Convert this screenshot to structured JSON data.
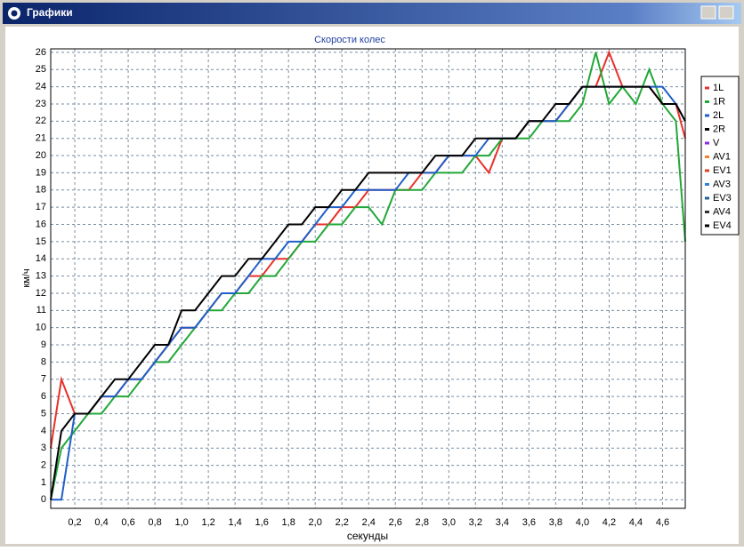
{
  "window_title": "Графики",
  "chart_data": {
    "type": "line",
    "title": "Скорости колес",
    "x_label": "секунды",
    "y_label": "км/ч",
    "x": [
      0.02,
      0.1,
      0.2,
      0.3,
      0.4,
      0.5,
      0.6,
      0.7,
      0.8,
      0.9,
      1.0,
      1.1,
      1.2,
      1.3,
      1.4,
      1.5,
      1.6,
      1.7,
      1.8,
      1.9,
      2.0,
      2.1,
      2.2,
      2.3,
      2.4,
      2.5,
      2.6,
      2.7,
      2.8,
      2.9,
      3.0,
      3.1,
      3.2,
      3.3,
      3.4,
      3.5,
      3.6,
      3.7,
      3.8,
      3.9,
      4.0,
      4.1,
      4.2,
      4.3,
      4.4,
      4.5,
      4.6,
      4.7,
      4.77
    ],
    "series": [
      {
        "name": "1L",
        "color": "#e8302a",
        "values": [
          3,
          7,
          5,
          5,
          6,
          6,
          7,
          7,
          8,
          9,
          10,
          10,
          11,
          12,
          12,
          13,
          13,
          14,
          14,
          15,
          16,
          16,
          17,
          17,
          18,
          18,
          18,
          18,
          19,
          19,
          20,
          20,
          20,
          19,
          21,
          21,
          22,
          22,
          22,
          23,
          24,
          24,
          26,
          24,
          24,
          24,
          23,
          23,
          21
        ]
      },
      {
        "name": "1R",
        "color": "#22a838",
        "values": [
          0,
          3,
          4,
          5,
          5,
          6,
          6,
          7,
          8,
          8,
          9,
          10,
          11,
          11,
          12,
          12,
          13,
          13,
          14,
          15,
          15,
          16,
          16,
          17,
          17,
          16,
          18,
          18,
          18,
          19,
          19,
          19,
          20,
          20,
          21,
          21,
          21,
          22,
          22,
          22,
          23,
          26,
          23,
          24,
          23,
          25,
          23,
          22,
          15
        ]
      },
      {
        "name": "2L",
        "color": "#1f5fc8",
        "values": [
          0,
          0,
          5,
          5,
          6,
          6,
          7,
          7,
          8,
          9,
          10,
          10,
          11,
          12,
          12,
          13,
          14,
          14,
          15,
          15,
          16,
          17,
          17,
          18,
          18,
          18,
          18,
          19,
          19,
          19,
          20,
          20,
          20,
          21,
          21,
          21,
          22,
          22,
          22,
          23,
          24,
          24,
          24,
          24,
          24,
          24,
          24,
          23,
          22
        ]
      },
      {
        "name": "2R",
        "color": "#000000",
        "values": [
          0,
          4,
          5,
          5,
          6,
          7,
          7,
          8,
          9,
          9,
          11,
          11,
          12,
          13,
          13,
          14,
          14,
          15,
          16,
          16,
          17,
          17,
          18,
          18,
          19,
          19,
          19,
          19,
          19,
          20,
          20,
          20,
          21,
          21,
          21,
          21,
          22,
          22,
          23,
          23,
          24,
          24,
          24,
          24,
          24,
          24,
          23,
          23,
          22
        ]
      },
      {
        "name": "V",
        "color": "#8a2be2"
      },
      {
        "name": "AV1",
        "color": "#f08030"
      },
      {
        "name": "EV1",
        "color": "#e04020"
      },
      {
        "name": "AV3",
        "color": "#3080e0"
      },
      {
        "name": "EV3",
        "color": "#2060a0"
      },
      {
        "name": "AV4",
        "color": "#303030"
      },
      {
        "name": "EV4",
        "color": "#000000"
      }
    ],
    "xlim": [
      0.02,
      4.77
    ],
    "ylim": [
      -0.5,
      26.2
    ],
    "xticks": [
      {
        "value": 0.2,
        "label": "0,2"
      },
      {
        "value": 0.4,
        "label": "0,4"
      },
      {
        "value": 0.6,
        "label": "0,6"
      },
      {
        "value": 0.8,
        "label": "0,8"
      },
      {
        "value": 1.0,
        "label": "1,0"
      },
      {
        "value": 1.2,
        "label": "1,2"
      },
      {
        "value": 1.4,
        "label": "1,4"
      },
      {
        "value": 1.6,
        "label": "1,6"
      },
      {
        "value": 1.8,
        "label": "1,8"
      },
      {
        "value": 2.0,
        "label": "2,0"
      },
      {
        "value": 2.2,
        "label": "2,2"
      },
      {
        "value": 2.4,
        "label": "2,4"
      },
      {
        "value": 2.6,
        "label": "2,6"
      },
      {
        "value": 2.8,
        "label": "2,8"
      },
      {
        "value": 3.0,
        "label": "3,0"
      },
      {
        "value": 3.2,
        "label": "3,2"
      },
      {
        "value": 3.4,
        "label": "3,4"
      },
      {
        "value": 3.6,
        "label": "3,6"
      },
      {
        "value": 3.8,
        "label": "3,8"
      },
      {
        "value": 4.0,
        "label": "4,0"
      },
      {
        "value": 4.2,
        "label": "4,2"
      },
      {
        "value": 4.4,
        "label": "4,4"
      },
      {
        "value": 4.6,
        "label": "4,6"
      }
    ],
    "yticks": [
      0,
      1,
      2,
      3,
      4,
      5,
      6,
      7,
      8,
      9,
      10,
      11,
      12,
      13,
      14,
      15,
      16,
      17,
      18,
      19,
      20,
      21,
      22,
      23,
      24,
      25,
      26
    ],
    "grid": true,
    "legend": "right"
  }
}
